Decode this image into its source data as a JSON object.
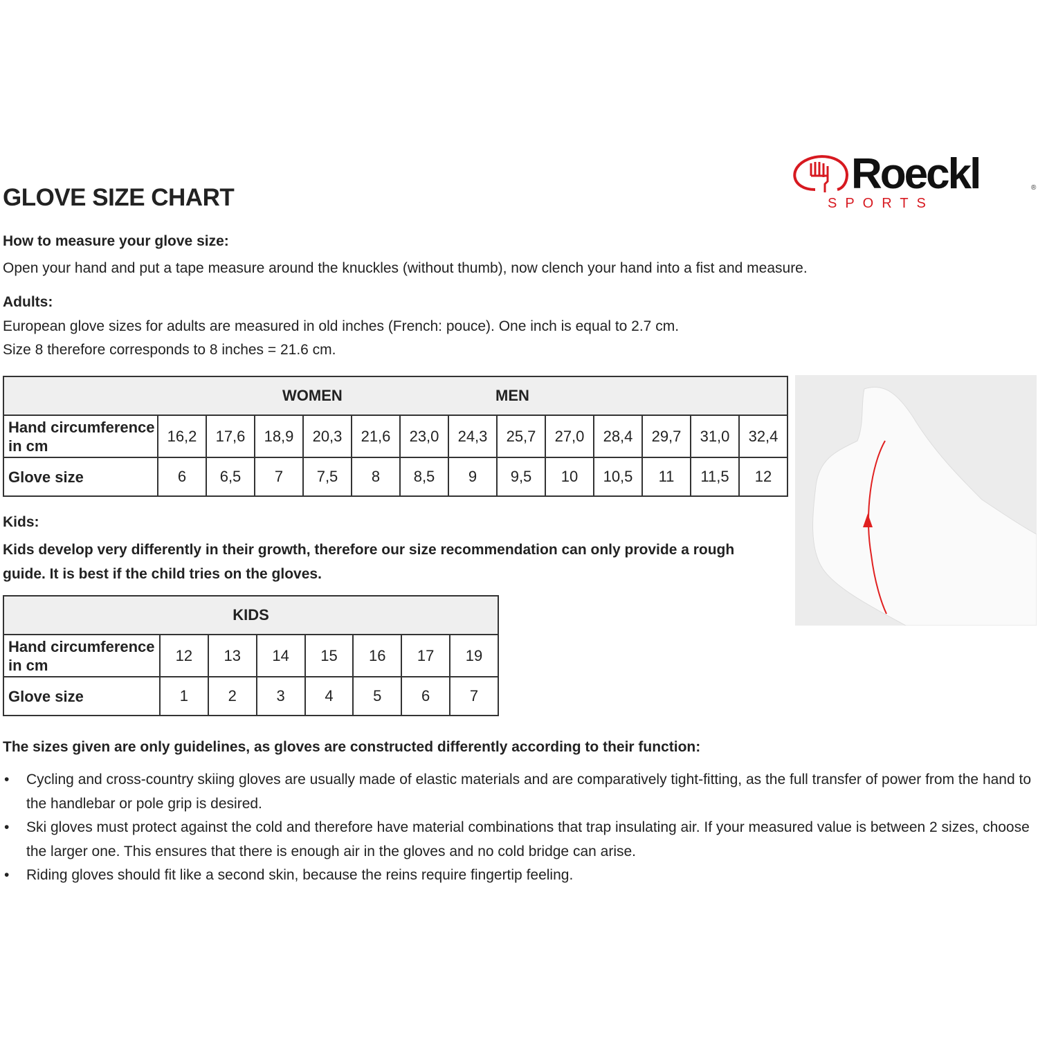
{
  "title": "GLOVE SIZE CHART",
  "logo": {
    "brand": "Roeckl",
    "sub": "SPORTS",
    "color": "#d71920"
  },
  "measure": {
    "heading": "How to measure your glove size:",
    "text": "Open your hand and put a tape measure around the knuckles (without thumb), now clench your hand into a fist and measure."
  },
  "adults": {
    "heading": "Adults:",
    "line1": "European glove sizes for adults are measured in old inches (French: pouce). One inch is equal to 2.7 cm.",
    "line2": "Size 8 therefore corresponds to 8 inches = 21.6 cm."
  },
  "adult_table": {
    "women": "WOMEN",
    "men": "MEN",
    "row1_label": "Hand circumference in cm",
    "row2_label": "Glove size",
    "circumference": [
      "16,2",
      "17,6",
      "18,9",
      "20,3",
      "21,6",
      "23,0",
      "24,3",
      "25,7",
      "27,0",
      "28,4",
      "29,7",
      "31,0",
      "32,4"
    ],
    "sizes": [
      "6",
      "6,5",
      "7",
      "7,5",
      "8",
      "8,5",
      "9",
      "9,5",
      "10",
      "10,5",
      "11",
      "11,5",
      "12"
    ]
  },
  "kids": {
    "heading": "Kids:",
    "text": "Kids develop very differently in their growth, therefore our size recommendation can only provide a rough guide. It is best if the child tries on the gloves."
  },
  "kids_table": {
    "header": "KIDS",
    "row1_label": "Hand circumference in cm",
    "row2_label": "Glove size",
    "circumference": [
      "12",
      "13",
      "14",
      "15",
      "16",
      "17",
      "19"
    ],
    "sizes": [
      "1",
      "2",
      "3",
      "4",
      "5",
      "6",
      "7"
    ]
  },
  "notes": {
    "heading": "The sizes given are only guidelines, as gloves are constructed differently according to their function:",
    "items": [
      "Cycling and cross-country skiing gloves are usually made of elastic materials and are comparatively tight-fitting, as the full transfer of power from the hand to the handlebar or pole grip is desired.",
      "Ski gloves must protect against the cold and therefore have material combinations that trap insulating air. If your measured value is between 2 sizes, choose the larger one. This ensures that there is enough air in the gloves and no cold bridge can arise.",
      "Riding gloves should fit like a second skin, because the reins require fingertip feeling."
    ]
  }
}
